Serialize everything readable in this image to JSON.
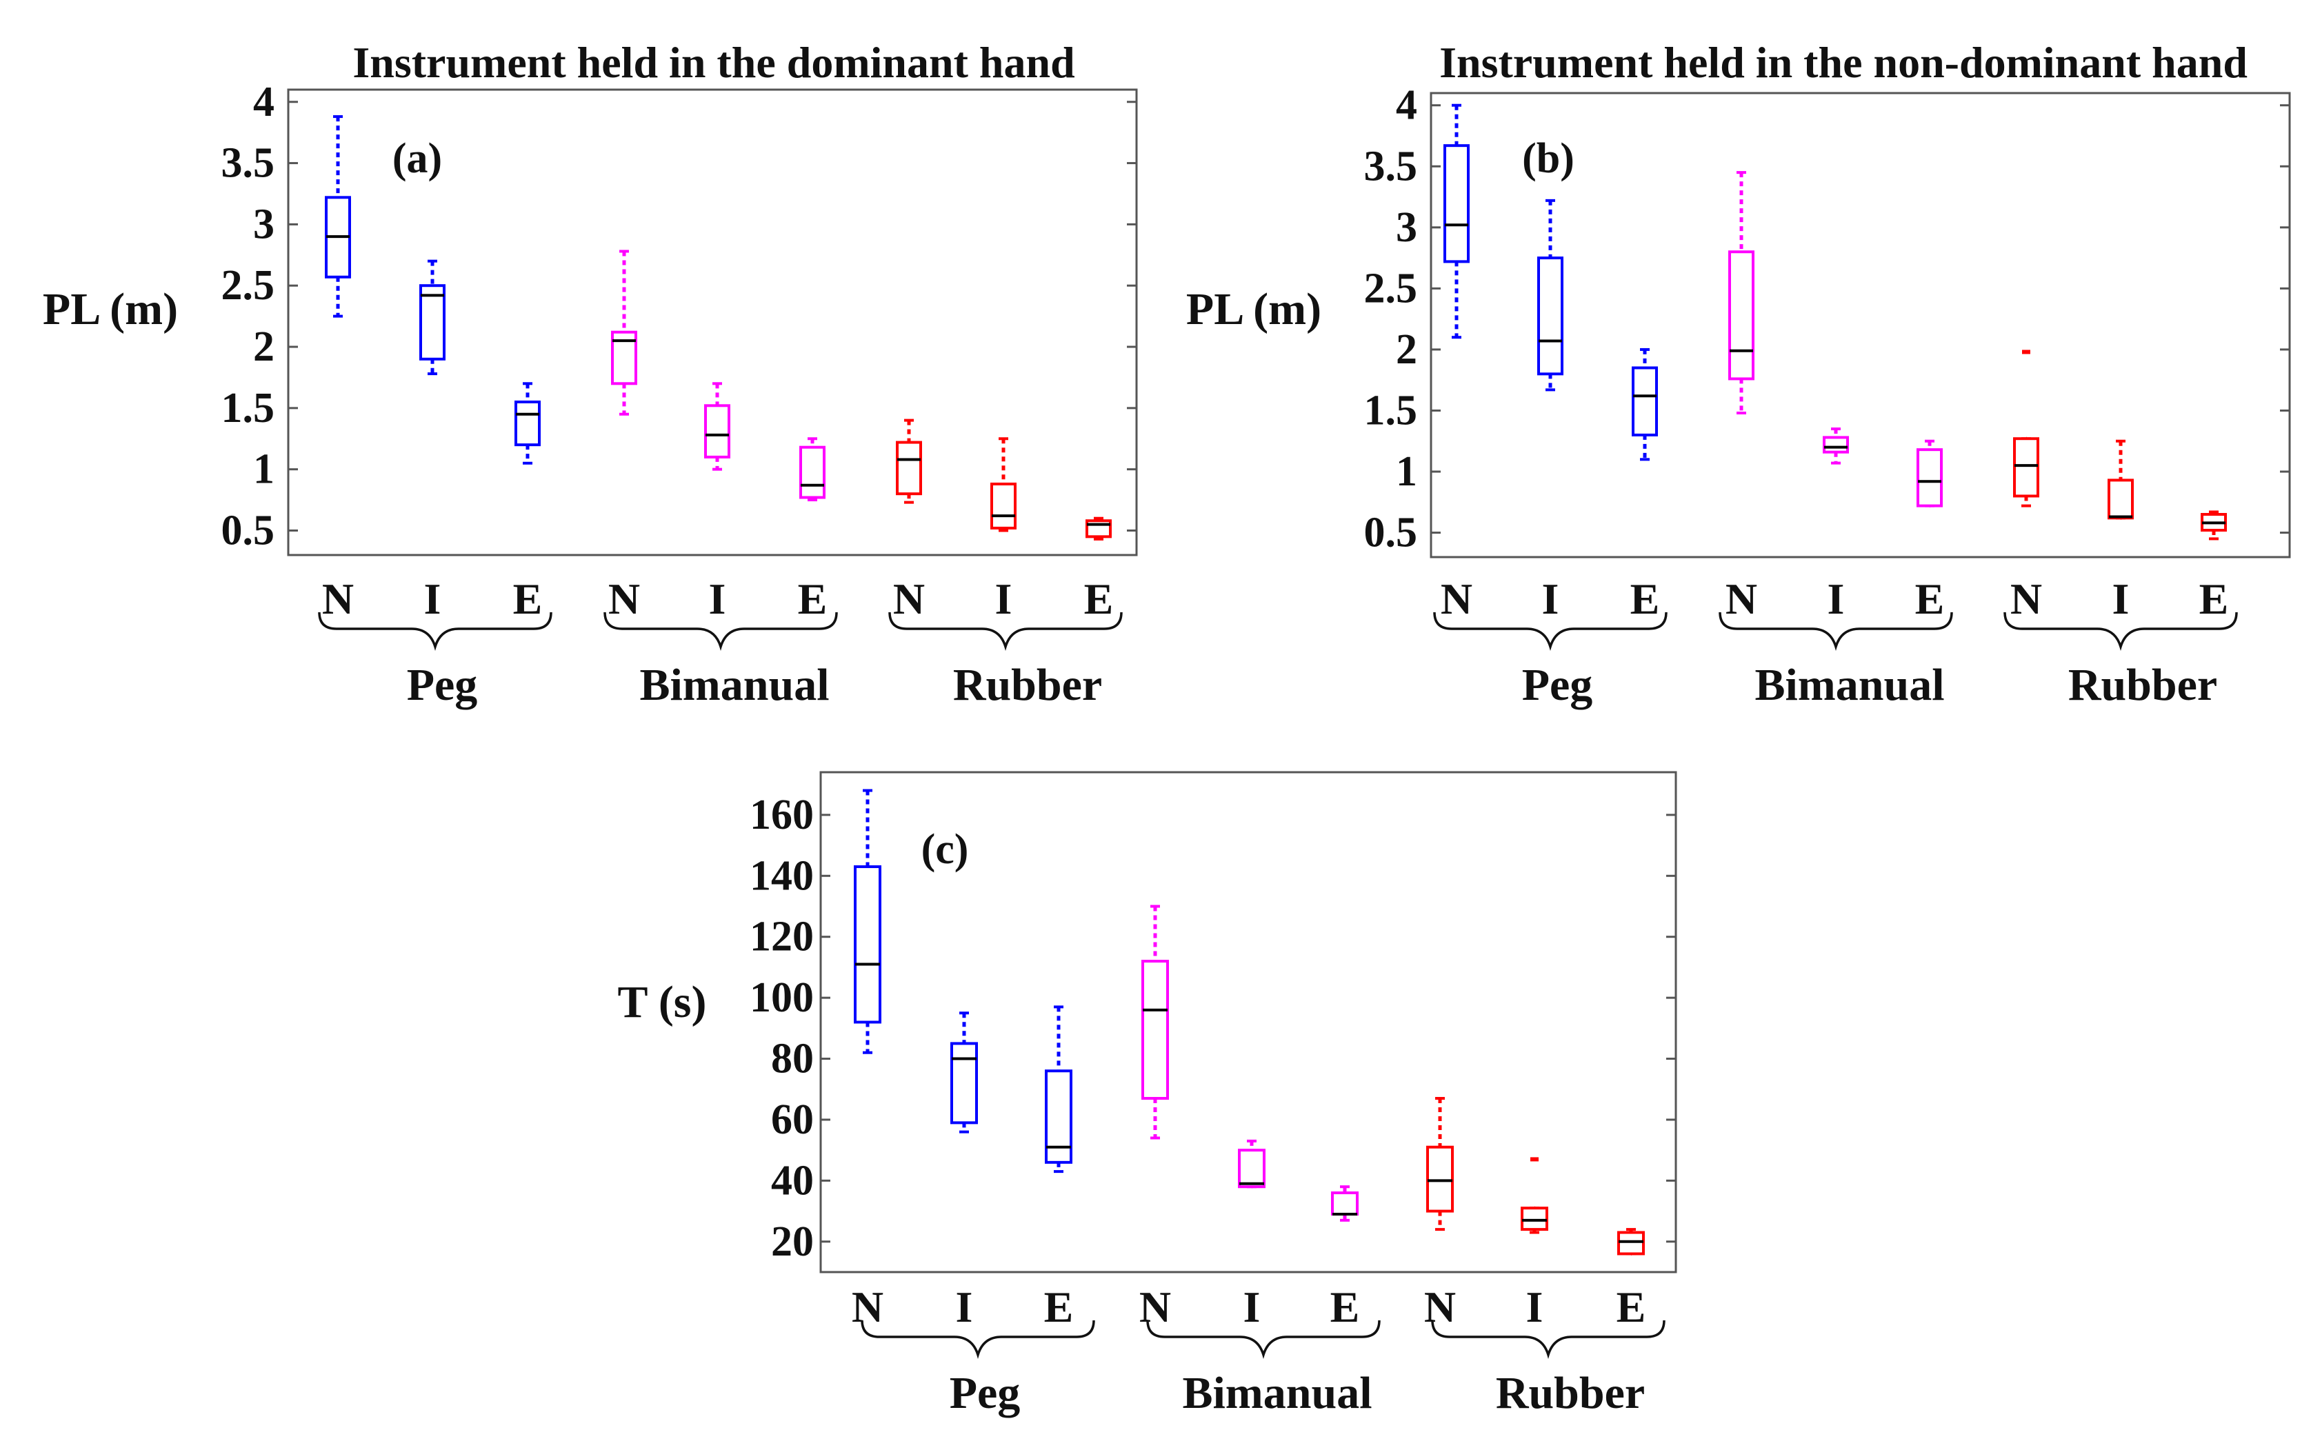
{
  "colors": {
    "Peg": "#0000ff",
    "Bimanual": "#ff00ff",
    "Rubber": "#ff0000",
    "median": "#000000"
  },
  "chart_data": [
    {
      "id": "a",
      "type": "boxplot",
      "panel_label": "(a)",
      "title": "Instrument held in the dominant hand",
      "ylabel": "PL (m)",
      "ylim": [
        0.3,
        4.1
      ],
      "yticks": [
        0.5,
        1,
        1.5,
        2,
        2.5,
        3,
        3.5,
        4
      ],
      "ytick_labels": [
        "0.5",
        "1",
        "1.5",
        "2",
        "2.5",
        "3",
        "3.5",
        "4"
      ],
      "groups": [
        "Peg",
        "Bimanual",
        "Rubber"
      ],
      "categories": [
        "N",
        "I",
        "E",
        "N",
        "I",
        "E",
        "N",
        "I",
        "E"
      ],
      "boxes": [
        {
          "group": "Peg",
          "level": "N",
          "whisker_low": 2.25,
          "q1": 2.57,
          "median": 2.9,
          "q3": 3.22,
          "whisker_high": 3.88
        },
        {
          "group": "Peg",
          "level": "I",
          "whisker_low": 1.78,
          "q1": 1.9,
          "median": 2.42,
          "q3": 2.5,
          "whisker_high": 2.7
        },
        {
          "group": "Peg",
          "level": "E",
          "whisker_low": 1.05,
          "q1": 1.2,
          "median": 1.45,
          "q3": 1.55,
          "whisker_high": 1.7
        },
        {
          "group": "Bimanual",
          "level": "N",
          "whisker_low": 1.45,
          "q1": 1.7,
          "median": 2.05,
          "q3": 2.12,
          "whisker_high": 2.78
        },
        {
          "group": "Bimanual",
          "level": "I",
          "whisker_low": 1.0,
          "q1": 1.1,
          "median": 1.28,
          "q3": 1.52,
          "whisker_high": 1.7
        },
        {
          "group": "Bimanual",
          "level": "E",
          "whisker_low": 0.75,
          "q1": 0.77,
          "median": 0.87,
          "q3": 1.18,
          "whisker_high": 1.25
        },
        {
          "group": "Rubber",
          "level": "N",
          "whisker_low": 0.73,
          "q1": 0.8,
          "median": 1.08,
          "q3": 1.22,
          "whisker_high": 1.4
        },
        {
          "group": "Rubber",
          "level": "I",
          "whisker_low": 0.5,
          "q1": 0.52,
          "median": 0.62,
          "q3": 0.88,
          "whisker_high": 1.25
        },
        {
          "group": "Rubber",
          "level": "E",
          "whisker_low": 0.43,
          "q1": 0.45,
          "median": 0.55,
          "q3": 0.58,
          "whisker_high": 0.6
        }
      ]
    },
    {
      "id": "b",
      "type": "boxplot",
      "panel_label": "(b)",
      "title": "Instrument held in the non-dominant hand",
      "ylabel": "PL (m)",
      "ylim": [
        0.3,
        4.1
      ],
      "yticks": [
        0.5,
        1,
        1.5,
        2,
        2.5,
        3,
        3.5,
        4
      ],
      "ytick_labels": [
        "0.5",
        "1",
        "1.5",
        "2",
        "2.5",
        "3",
        "3.5",
        "4"
      ],
      "groups": [
        "Peg",
        "Bimanual",
        "Rubber"
      ],
      "categories": [
        "N",
        "I",
        "E",
        "N",
        "I",
        "E",
        "N",
        "I",
        "E"
      ],
      "boxes": [
        {
          "group": "Peg",
          "level": "N",
          "whisker_low": 2.1,
          "q1": 2.72,
          "median": 3.02,
          "q3": 3.67,
          "whisker_high": 4.0
        },
        {
          "group": "Peg",
          "level": "I",
          "whisker_low": 1.67,
          "q1": 1.8,
          "median": 2.07,
          "q3": 2.75,
          "whisker_high": 3.22
        },
        {
          "group": "Peg",
          "level": "E",
          "whisker_low": 1.1,
          "q1": 1.3,
          "median": 1.62,
          "q3": 1.85,
          "whisker_high": 2.0
        },
        {
          "group": "Bimanual",
          "level": "N",
          "whisker_low": 1.48,
          "q1": 1.76,
          "median": 1.99,
          "q3": 2.8,
          "whisker_high": 3.45
        },
        {
          "group": "Bimanual",
          "level": "I",
          "whisker_low": 1.07,
          "q1": 1.16,
          "median": 1.2,
          "q3": 1.28,
          "whisker_high": 1.35
        },
        {
          "group": "Bimanual",
          "level": "E",
          "whisker_low": 0.72,
          "q1": 0.72,
          "median": 0.92,
          "q3": 1.18,
          "whisker_high": 1.25
        },
        {
          "group": "Rubber",
          "level": "N",
          "whisker_low": 0.72,
          "q1": 0.8,
          "median": 1.05,
          "q3": 1.27,
          "whisker_high": 1.27,
          "outliers": [
            1.98
          ]
        },
        {
          "group": "Rubber",
          "level": "I",
          "whisker_low": 0.62,
          "q1": 0.62,
          "median": 0.63,
          "q3": 0.93,
          "whisker_high": 1.25
        },
        {
          "group": "Rubber",
          "level": "E",
          "whisker_low": 0.45,
          "q1": 0.52,
          "median": 0.58,
          "q3": 0.65,
          "whisker_high": 0.67
        }
      ]
    },
    {
      "id": "c",
      "type": "boxplot",
      "panel_label": "(c)",
      "title": "",
      "ylabel": "T (s)",
      "ylim": [
        10,
        174
      ],
      "yticks": [
        20,
        40,
        60,
        80,
        100,
        120,
        140,
        160
      ],
      "ytick_labels": [
        "20",
        "40",
        "60",
        "80",
        "100",
        "120",
        "140",
        "160"
      ],
      "groups": [
        "Peg",
        "Bimanual",
        "Rubber"
      ],
      "categories": [
        "N",
        "I",
        "E",
        "N",
        "I",
        "E",
        "N",
        "I",
        "E"
      ],
      "boxes": [
        {
          "group": "Peg",
          "level": "N",
          "whisker_low": 82,
          "q1": 92,
          "median": 111,
          "q3": 143,
          "whisker_high": 168
        },
        {
          "group": "Peg",
          "level": "I",
          "whisker_low": 56,
          "q1": 59,
          "median": 80,
          "q3": 85,
          "whisker_high": 95
        },
        {
          "group": "Peg",
          "level": "E",
          "whisker_low": 43,
          "q1": 46,
          "median": 51,
          "q3": 76,
          "whisker_high": 97
        },
        {
          "group": "Bimanual",
          "level": "N",
          "whisker_low": 54,
          "q1": 67,
          "median": 96,
          "q3": 112,
          "whisker_high": 130
        },
        {
          "group": "Bimanual",
          "level": "I",
          "whisker_low": 38,
          "q1": 38,
          "median": 39,
          "q3": 50,
          "whisker_high": 53
        },
        {
          "group": "Bimanual",
          "level": "E",
          "whisker_low": 27,
          "q1": 29,
          "median": 29,
          "q3": 36,
          "whisker_high": 38
        },
        {
          "group": "Rubber",
          "level": "N",
          "whisker_low": 24,
          "q1": 30,
          "median": 40,
          "q3": 51,
          "whisker_high": 67
        },
        {
          "group": "Rubber",
          "level": "I",
          "whisker_low": 23,
          "q1": 24,
          "median": 27,
          "q3": 31,
          "whisker_high": 31,
          "outliers": [
            47
          ]
        },
        {
          "group": "Rubber",
          "level": "E",
          "whisker_low": 16,
          "q1": 16,
          "median": 20,
          "q3": 23,
          "whisker_high": 24
        }
      ]
    }
  ]
}
